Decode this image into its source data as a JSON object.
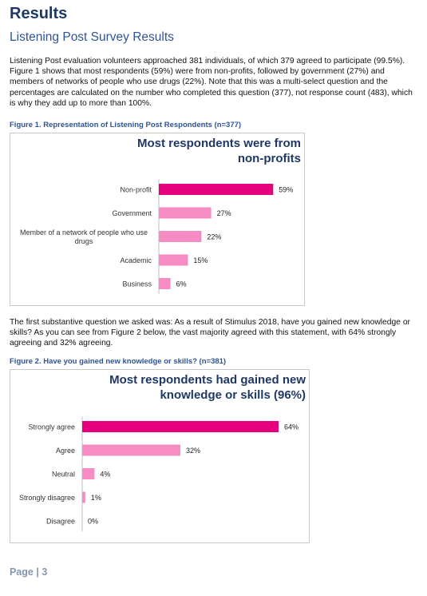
{
  "heading": "Results",
  "subheading": "Listening Post Survey Results",
  "paragraph1": "Listening Post evaluation volunteers approached 381 individuals, of which 379 agreed to participate (99.5%). Figure 1 shows that most respondents (59%) were from non-profits, followed by government (27%) and members of networks of people who use drugs (22%). Note that this was a multi-select question and the percentages are calculated on the number who completed this question (377), not response count (483), which is why they add up to more than 100%.",
  "figure1_caption": "Figure 1. Representation of Listening Post Respondents (n=377)",
  "paragraph2": "The first substantive question we asked was: As a result of Stimulus 2018, have you gained new knowledge or skills? As you can see from Figure 2 below, the vast majority agreed with this statement, with 64% strongly agreeing and 32% agreeing.",
  "figure2_caption": "Figure 2. Have you gained new knowledge or skills? (n=381)",
  "page_label": "Page | 3",
  "colors": {
    "primary_bar": "#e6007e",
    "secondary_bar": "#f78bc3",
    "title": "#1f3864"
  },
  "chart_data": [
    {
      "type": "bar",
      "orientation": "horizontal",
      "title_lines": [
        "Most respondents were from",
        "non-profits"
      ],
      "categories": [
        "Non-profit",
        "Government",
        "Member of a network of people who use drugs",
        "Academic",
        "Business"
      ],
      "category_lines": [
        [
          "Non-profit"
        ],
        [
          "Government"
        ],
        [
          "Member of a network of people who use",
          "drugs"
        ],
        [
          "Academic"
        ],
        [
          "Business"
        ]
      ],
      "values": [
        59,
        27,
        22,
        15,
        6
      ],
      "value_labels": [
        "59%",
        "27%",
        "22%",
        "15%",
        "6%"
      ],
      "highlight_index": 0,
      "xlim": [
        0,
        70
      ],
      "grid": false
    },
    {
      "type": "bar",
      "orientation": "horizontal",
      "title_lines": [
        "Most respondents had gained new",
        "knowledge or skills (96%)"
      ],
      "categories": [
        "Strongly agree",
        "Agree",
        "Neutral",
        "Strongly disagree",
        "Disagree"
      ],
      "category_lines": [
        [
          "Strongly agree"
        ],
        [
          "Agree"
        ],
        [
          "Neutral"
        ],
        [
          "Strongly disagree"
        ],
        [
          "Disagree"
        ]
      ],
      "values": [
        64,
        32,
        4,
        1,
        0
      ],
      "value_labels": [
        "64%",
        "32%",
        "4%",
        "1%",
        "0%"
      ],
      "highlight_index": 0,
      "xlim": [
        0,
        64
      ],
      "grid": false
    }
  ]
}
